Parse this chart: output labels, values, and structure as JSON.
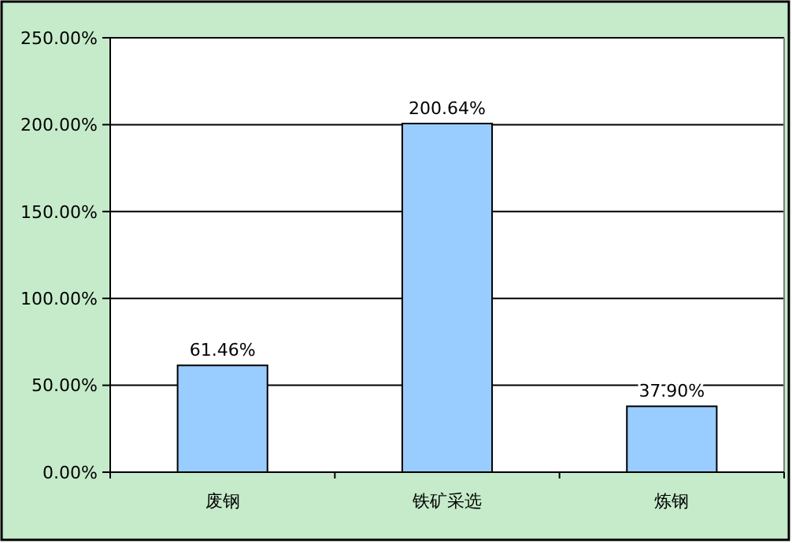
{
  "chart_data": {
    "type": "bar",
    "categories": [
      "废钢",
      "铁矿采选",
      "炼钢"
    ],
    "values": [
      61.46,
      200.64,
      37.9
    ],
    "color": "#99ccff",
    "value_labels": [
      "61.46%",
      "200.64%",
      "37.90%"
    ],
    "ylim": [
      0,
      250
    ],
    "yticks": [
      {
        "value": 0,
        "label": "0.00%"
      },
      {
        "value": 50,
        "label": "50.00%"
      },
      {
        "value": 100,
        "label": "100.00%"
      },
      {
        "value": 150,
        "label": "150.00%"
      },
      {
        "value": 200,
        "label": "200.00%"
      },
      {
        "value": 250,
        "label": "250.00%"
      }
    ],
    "grid": "y"
  }
}
